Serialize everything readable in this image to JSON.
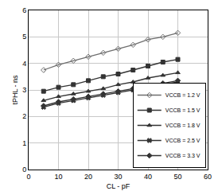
{
  "chart_data": {
    "type": "line",
    "x_label": "CL - pF",
    "y_label": "tPHL - ns",
    "x": [
      5,
      10,
      15,
      20,
      25,
      30,
      35,
      40,
      45,
      50
    ],
    "series": [
      {
        "name": "VCCB = 1.2 V",
        "color": "#6e6e6e",
        "marker": "diamond-open",
        "values": [
          3.75,
          3.95,
          4.1,
          4.25,
          4.4,
          4.55,
          4.7,
          4.9,
          5.0,
          5.15
        ]
      },
      {
        "name": "VCCB = 1.5 V",
        "color": "#333333",
        "marker": "square",
        "values": [
          2.95,
          3.1,
          3.2,
          3.35,
          3.5,
          3.6,
          3.75,
          3.9,
          4.05,
          4.15
        ]
      },
      {
        "name": "VCCB = 1.8 V",
        "color": "#333333",
        "marker": "triangle-up",
        "values": [
          2.6,
          2.75,
          2.85,
          2.95,
          3.05,
          3.2,
          3.3,
          3.45,
          3.55,
          3.65
        ]
      },
      {
        "name": "VCCB = 2.5 V",
        "color": "#333333",
        "marker": "x",
        "values": [
          2.35,
          2.5,
          2.6,
          2.7,
          2.8,
          2.9,
          3.0,
          3.1,
          3.2,
          3.3
        ]
      },
      {
        "name": "VCCB = 3.3 V",
        "color": "#333333",
        "marker": "diamond",
        "values": [
          2.4,
          2.55,
          2.65,
          2.75,
          2.85,
          2.95,
          3.05,
          3.15,
          3.25,
          3.35
        ]
      }
    ],
    "xlim": [
      0,
      60
    ],
    "xticks": [
      0,
      10,
      20,
      30,
      40,
      50,
      60
    ],
    "ylim": [
      0,
      6
    ],
    "yticks": [
      0,
      1,
      2,
      3,
      4,
      5,
      6
    ],
    "grid": true,
    "legend": "bottom right"
  }
}
